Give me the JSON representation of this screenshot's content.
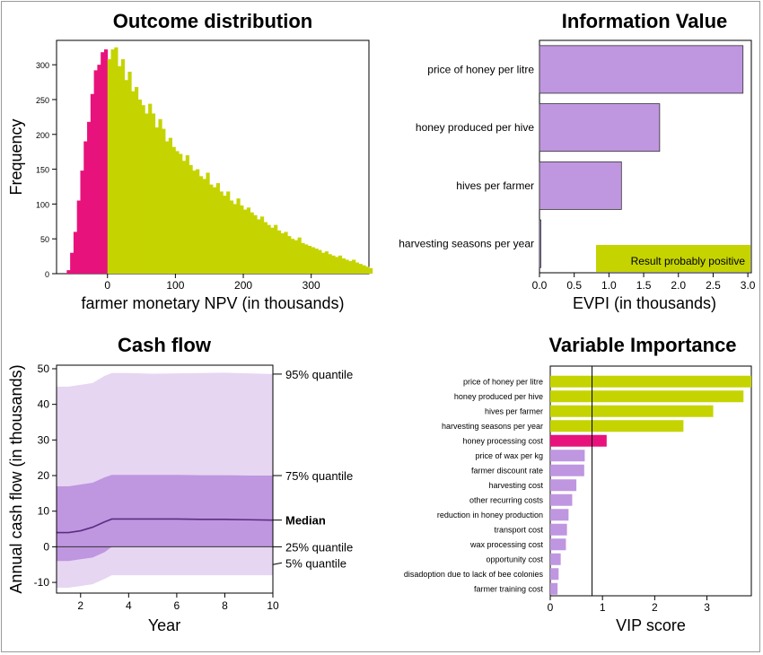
{
  "chart_data": [
    {
      "id": "hist",
      "type": "bar",
      "title": "Outcome distribution",
      "xlabel": "farmer monetary NPV (in thousands)",
      "ylabel": "Frequency",
      "xlim": [
        -75,
        385
      ],
      "ylim": [
        0,
        335
      ],
      "xticks": [
        0,
        100,
        200,
        300
      ],
      "yticks": [
        0,
        50,
        100,
        150,
        200,
        250,
        300
      ],
      "bin_width": 5,
      "bin_start": -60,
      "negative_color": "#e8127c",
      "positive_color": "#c5d400",
      "values": [
        5,
        30,
        60,
        105,
        148,
        190,
        218,
        258,
        292,
        300,
        318,
        322,
        308,
        322,
        325,
        298,
        308,
        278,
        290,
        262,
        268,
        250,
        242,
        230,
        244,
        230,
        210,
        222,
        208,
        190,
        195,
        182,
        176,
        172,
        162,
        170,
        156,
        148,
        150,
        140,
        136,
        145,
        128,
        124,
        130,
        118,
        112,
        118,
        105,
        100,
        108,
        98,
        92,
        95,
        88,
        84,
        78,
        82,
        74,
        70,
        66,
        70,
        62,
        58,
        60,
        54,
        50,
        48,
        52,
        44,
        42,
        40,
        38,
        36,
        34,
        30,
        32,
        28,
        26,
        24,
        26,
        22,
        20,
        18,
        20,
        16,
        14,
        12,
        10,
        8
      ]
    },
    {
      "id": "evpi",
      "type": "bar",
      "orientation": "horizontal",
      "title": "Information Value",
      "xlabel": "EVPI (in thousands)",
      "xlim": [
        0,
        3.05
      ],
      "xticks": [
        "0.0",
        "0.5",
        "1.0",
        "1.5",
        "2.0",
        "2.5",
        "3.0"
      ],
      "categories": [
        "price of honey per litre",
        "honey produced per hive",
        "hives per farmer",
        "harvesting seasons per year"
      ],
      "values": [
        2.93,
        1.73,
        1.18,
        0.02
      ],
      "bar_color": "#bf96e0",
      "legend": {
        "label": "Result probably positive",
        "color": "#c5d400",
        "position": "bottom-right"
      }
    },
    {
      "id": "cashflow",
      "type": "area",
      "title": "Cash flow",
      "xlabel": "Year",
      "ylabel": "Annual cash flow (in thousands)",
      "xlim": [
        1,
        10
      ],
      "ylim": [
        -13,
        51
      ],
      "xticks": [
        2,
        4,
        6,
        8,
        10
      ],
      "yticks": [
        -10,
        0,
        10,
        20,
        30,
        40,
        50
      ],
      "x": [
        1,
        1.5,
        2,
        2.5,
        3,
        3.3,
        4,
        5,
        6,
        7,
        8,
        9,
        10
      ],
      "q5": [
        -11.5,
        -11.5,
        -11,
        -10.5,
        -9,
        -8,
        -8,
        -8,
        -8,
        -8,
        -8,
        -8,
        -8
      ],
      "q25": [
        -4,
        -4,
        -3.5,
        -3,
        -1.5,
        0,
        0,
        0,
        0,
        0,
        0,
        0,
        0
      ],
      "median": [
        4,
        4,
        4.5,
        5.5,
        7,
        7.8,
        7.8,
        7.8,
        7.8,
        7.7,
        7.7,
        7.6,
        7.5
      ],
      "q75": [
        17,
        17,
        17.5,
        18,
        19.5,
        20.2,
        20.2,
        20.2,
        20.2,
        20.1,
        20.1,
        20.0,
        20.0
      ],
      "q95": [
        45,
        45,
        45.5,
        46,
        48,
        48.8,
        48.8,
        48.6,
        48.7,
        48.8,
        48.9,
        48.7,
        48.5
      ],
      "labels": {
        "q95": "95% quantile",
        "q75": "75% quantile",
        "median": "Median",
        "q25": "25% quantile",
        "q5": "5% quantile"
      },
      "outer_color": "#e6d6f2",
      "inner_color": "#bf96e0",
      "line_color": "#5a2d82"
    },
    {
      "id": "vip",
      "type": "bar",
      "orientation": "horizontal",
      "title": "Variable Importance",
      "xlabel": "VIP score",
      "xlim": [
        0,
        3.85
      ],
      "xticks": [
        0,
        1,
        2,
        3
      ],
      "threshold": 0.8,
      "categories": [
        "price of honey per litre",
        "honey produced per hive",
        "hives per farmer",
        "harvesting seasons per year",
        "honey processing cost",
        "price of wax per kg",
        "farmer discount rate",
        "harvesting cost",
        "other recurring costs",
        "reduction in honey production",
        "transport cost",
        "wax processing cost",
        "opportunity cost",
        "disadoption due to lack of bee colonies",
        "farmer training cost"
      ],
      "values": [
        3.85,
        3.7,
        3.12,
        2.55,
        1.08,
        0.66,
        0.65,
        0.5,
        0.42,
        0.35,
        0.32,
        0.3,
        0.2,
        0.16,
        0.14
      ],
      "colors": [
        "#c5d400",
        "#c5d400",
        "#c5d400",
        "#c5d400",
        "#e8127c",
        "#bf96e0",
        "#bf96e0",
        "#bf96e0",
        "#bf96e0",
        "#bf96e0",
        "#bf96e0",
        "#bf96e0",
        "#bf96e0",
        "#bf96e0",
        "#bf96e0"
      ]
    }
  ]
}
